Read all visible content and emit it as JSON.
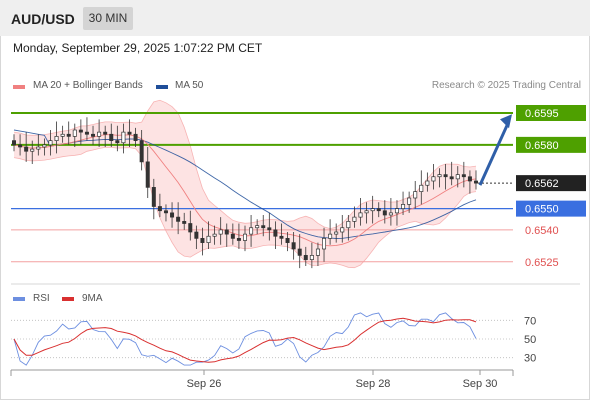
{
  "header": {
    "symbol": "AUD/USD",
    "timeframe": "30 MIN"
  },
  "datetime": "Monday, September 29, 2025 1:07:22 PM CET",
  "legend": {
    "bollinger_label": "MA 20 + Bollinger Bands",
    "ma50_label": "MA 50",
    "credit": "Research © 2025 Trading Central"
  },
  "rsi_legend": {
    "rsi_label": "RSI",
    "ma_label": "9MA"
  },
  "colors": {
    "bollinger": "#f08080",
    "band_fill": "#fde0e0",
    "ma50": "#1f4e99",
    "candle": "#333333",
    "resistance": "#4ea000",
    "support": "#3a6fe0",
    "target_red": "#e05050",
    "arrow": "#2f5fa8",
    "price_badge": "#222222",
    "rsi": "#6d8fe0",
    "rsi_ma": "#d93030"
  },
  "chart_data": {
    "type": "candlestick",
    "price_axis": {
      "ylim": [
        0.6515,
        0.6603
      ]
    },
    "x_ticks": [
      "Sep 26",
      "Sep 28",
      "Sep 30"
    ],
    "levels": [
      {
        "value": "0.6595",
        "kind": "resistance"
      },
      {
        "value": "0.6580",
        "kind": "resistance"
      },
      {
        "value": "0.6562",
        "kind": "current"
      },
      {
        "value": "0.6550",
        "kind": "support"
      },
      {
        "value": "0.6540",
        "kind": "target"
      },
      {
        "value": "0.6525",
        "kind": "target"
      }
    ],
    "close_approx": [
      0.658,
      0.6579,
      0.6577,
      0.6578,
      0.6579,
      0.658,
      0.6582,
      0.6584,
      0.6585,
      0.6584,
      0.6587,
      0.6586,
      0.6585,
      0.6584,
      0.6586,
      0.6585,
      0.6582,
      0.6581,
      0.6586,
      0.6585,
      0.6582,
      0.6572,
      0.656,
      0.6551,
      0.6549,
      0.6548,
      0.6546,
      0.6544,
      0.6543,
      0.6539,
      0.6536,
      0.6534,
      0.6537,
      0.6538,
      0.654,
      0.6538,
      0.6536,
      0.6535,
      0.6538,
      0.6541,
      0.6542,
      0.6541,
      0.654,
      0.6537,
      0.6536,
      0.6534,
      0.6531,
      0.6528,
      0.6526,
      0.6528,
      0.6531,
      0.6536,
      0.6538,
      0.6539,
      0.6541,
      0.6544,
      0.6546,
      0.6548,
      0.6549,
      0.655,
      0.6549,
      0.6547,
      0.6548,
      0.655,
      0.6552,
      0.6555,
      0.6558,
      0.6561,
      0.6563,
      0.6565,
      0.6566,
      0.6565,
      0.6564,
      0.6566,
      0.6565,
      0.6563,
      0.6562
    ],
    "ma50_approx_endpoints": {
      "start": 0.6587,
      "end": 0.655
    },
    "rsi": {
      "levels": [
        70,
        50,
        30
      ],
      "ylim": [
        20,
        80
      ]
    }
  }
}
